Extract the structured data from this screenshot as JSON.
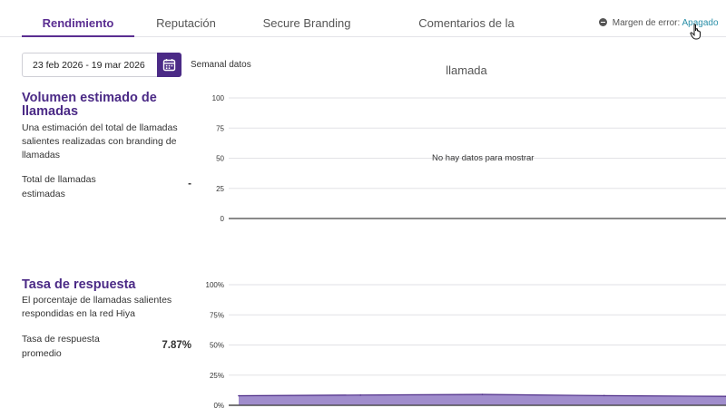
{
  "tabs": [
    {
      "label": "Rendimiento",
      "active": true
    },
    {
      "label": "Reputación",
      "active": false
    },
    {
      "label": "Secure Branding",
      "active": false
    },
    {
      "label": "Comentarios de la llamada",
      "active": false
    }
  ],
  "error_margin": {
    "label": "Margen de error:",
    "link": "Apagado"
  },
  "date_range": {
    "value": "23 feb 2026 - 19 mar 2026",
    "granularity": "Semanal datos"
  },
  "colors": {
    "brand": "#4b2a86",
    "accent": "#5a2d91",
    "fill": "#9b87c9",
    "link": "#2a8fa8"
  },
  "icons": {
    "calendar": "calendar-icon",
    "circle": "minus-circle-icon",
    "cursor": "hand-cursor-icon"
  },
  "volume": {
    "title": "Volumen estimado de llamadas",
    "description": "Una estimación del total de llamadas salientes realizadas con branding de llamadas",
    "stat_label": "Total de llamadas estimadas",
    "stat_value": "-"
  },
  "response": {
    "title": "Tasa de respuesta",
    "description": "El porcentaje de llamadas salientes respondidas en la red Hiya",
    "stat_label": "Tasa de respuesta promedio",
    "stat_value": "7.87%"
  },
  "chart_data": [
    {
      "type": "line",
      "title": "",
      "yticks": [
        "100",
        "75",
        "50",
        "25",
        "0"
      ],
      "ylim": [
        0,
        100
      ],
      "grid": true,
      "empty_message": "No hay datos para mostrar",
      "series": []
    },
    {
      "type": "area",
      "title": "",
      "yticks": [
        "100%",
        "75%",
        "50%",
        "25%",
        "0%"
      ],
      "ylim": [
        0,
        100
      ],
      "grid": true,
      "x": [
        0,
        1,
        2,
        3,
        4
      ],
      "series": [
        {
          "values": [
            7.9,
            8.5,
            9.0,
            8.0,
            7.4
          ]
        }
      ]
    }
  ]
}
